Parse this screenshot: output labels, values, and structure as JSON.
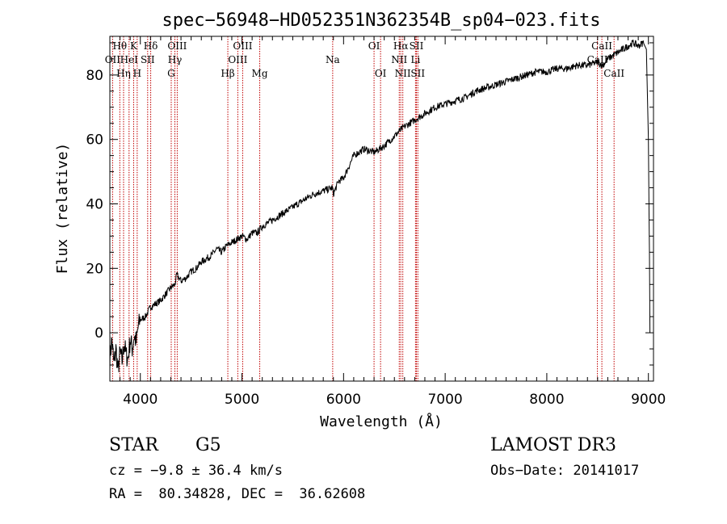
{
  "chart_data": {
    "type": "line",
    "title": "spec−56948−HD052351N362354B_sp04−023.fits",
    "xlabel": "Wavelength (Å)",
    "ylabel": "Flux (relative)",
    "xlim": [
      3700,
      9050
    ],
    "ylim": [
      -15,
      92
    ],
    "x_ticks": [
      4000,
      5000,
      6000,
      7000,
      8000,
      9000
    ],
    "x_tick_labels": [
      "4000",
      "5000",
      "6000",
      "7000",
      "8000",
      "9000"
    ],
    "y_ticks": [
      0,
      20,
      40,
      60,
      80
    ],
    "y_tick_labels": [
      "0",
      "20",
      "40",
      "60",
      "80"
    ],
    "series": [
      {
        "name": "flux",
        "x": [
          3700,
          3720,
          3740,
          3760,
          3780,
          3800,
          3820,
          3840,
          3860,
          3880,
          3900,
          3920,
          3940,
          3960,
          3980,
          4000,
          4050,
          4100,
          4150,
          4200,
          4250,
          4300,
          4340,
          4360,
          4400,
          4450,
          4500,
          4550,
          4600,
          4650,
          4700,
          4750,
          4800,
          4850,
          4900,
          4950,
          5000,
          5050,
          5100,
          5150,
          5200,
          5300,
          5400,
          5500,
          5600,
          5700,
          5800,
          5890,
          5900,
          5950,
          6000,
          6100,
          6200,
          6300,
          6400,
          6500,
          6563,
          6600,
          6700,
          6800,
          6900,
          7000,
          7100,
          7200,
          7300,
          7400,
          7500,
          7600,
          7700,
          7800,
          7900,
          8000,
          8100,
          8200,
          8300,
          8400,
          8500,
          8550,
          8600,
          8650,
          8700,
          8750,
          8800,
          8850,
          8900,
          8950,
          8980,
          9000,
          9010,
          9015
        ],
        "values": [
          -8,
          -2,
          -10,
          -5,
          -12,
          -6,
          -9,
          -3,
          -7,
          -8,
          -2,
          -5,
          -1,
          -3,
          2,
          4,
          5,
          8,
          9,
          10,
          12,
          14,
          15,
          18,
          16,
          17,
          19,
          20,
          22,
          23,
          24,
          26,
          25,
          27,
          28,
          29,
          30,
          29,
          31,
          31,
          33,
          35,
          37,
          39,
          41,
          43,
          44,
          45,
          43,
          47,
          48,
          55,
          57,
          56,
          58,
          61,
          63,
          64,
          66,
          68,
          70,
          71,
          72,
          73,
          75,
          76,
          77,
          78,
          79,
          80,
          81,
          81,
          82,
          82,
          83,
          83,
          84,
          83,
          85,
          86,
          87,
          88,
          89,
          90,
          89,
          90,
          88,
          60,
          25,
          0
        ]
      }
    ],
    "line_markers": [
      {
        "label": "Hθ",
        "wavelength": 3798,
        "row": 0
      },
      {
        "label": "OII",
        "wavelength": 3727,
        "row": 1
      },
      {
        "label": "Hη",
        "wavelength": 3835,
        "row": 2
      },
      {
        "label": "K",
        "wavelength": 3934,
        "row": 0
      },
      {
        "label": "HeI",
        "wavelength": 3889,
        "row": 1
      },
      {
        "label": "H",
        "wavelength": 3969,
        "row": 2
      },
      {
        "label": "Hδ",
        "wavelength": 4102,
        "row": 0
      },
      {
        "label": "SII",
        "wavelength": 4072,
        "row": 1
      },
      {
        "label": "OIII",
        "wavelength": 4363,
        "row": 0
      },
      {
        "label": "Hγ",
        "wavelength": 4340,
        "row": 1
      },
      {
        "label": "G",
        "wavelength": 4304,
        "row": 2
      },
      {
        "label": "Hβ",
        "wavelength": 4861,
        "row": 2
      },
      {
        "label": "OIII",
        "wavelength": 5007,
        "row": 0
      },
      {
        "label": "OIII",
        "wavelength": 4959,
        "row": 1
      },
      {
        "label": "Mg",
        "wavelength": 5175,
        "row": 2
      },
      {
        "label": "Na",
        "wavelength": 5893,
        "row": 1
      },
      {
        "label": "OI",
        "wavelength": 6300,
        "row": 0
      },
      {
        "label": "OI",
        "wavelength": 6364,
        "row": 2
      },
      {
        "label": "Hα",
        "wavelength": 6563,
        "row": 0
      },
      {
        "label": "NII",
        "wavelength": 6548,
        "row": 1
      },
      {
        "label": "NII",
        "wavelength": 6583,
        "row": 2
      },
      {
        "label": "SII",
        "wavelength": 6717,
        "row": 0
      },
      {
        "label": "Li",
        "wavelength": 6708,
        "row": 1
      },
      {
        "label": "SII",
        "wavelength": 6731,
        "row": 2
      },
      {
        "label": "CaII",
        "wavelength": 8542,
        "row": 0
      },
      {
        "label": "CaII",
        "wavelength": 8498,
        "row": 1
      },
      {
        "label": "CaII",
        "wavelength": 8662,
        "row": 2
      }
    ]
  },
  "info": {
    "object_class": "STAR",
    "subclass": "G5",
    "survey": "LAMOST DR3",
    "redshift": "cz = −9.8 ± 36.4 km/s",
    "obs_date": "Obs−Date: 20141017",
    "coords": "RA =  80.34828, DEC =  36.62608"
  },
  "colors": {
    "spectrum": "#000000",
    "marker_line": "#c00000",
    "text": "#000000"
  }
}
